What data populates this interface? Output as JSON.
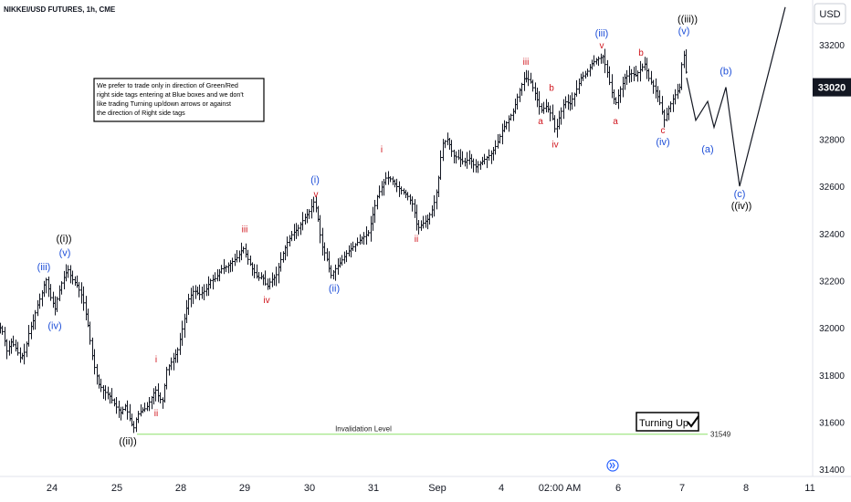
{
  "header": {
    "symbol_title": "NIKKEI/USD FUTURES, 1h, CME",
    "currency_button": "USD"
  },
  "notice": {
    "lines": [
      "We prefer to trade only in direction of Green/Red",
      "right side tags entering at Blue boxes and we don't",
      "like trading Turning up/down arrows or against",
      "the direction of Right side tags"
    ]
  },
  "badge": {
    "label": "Turning Up",
    "icon": "checkmark-icon"
  },
  "scroll_icon": "chevrons-right-icon",
  "colors": {
    "price_bars": "#131722",
    "blue_labels": "#1e4fd8",
    "red_labels": "#d0161e",
    "black_labels": "#000000",
    "invalidation_line": "#8ee06a",
    "projection": "#131722",
    "price_tag_bg": "#131722"
  },
  "chart_data": {
    "type": "ohlc",
    "y_axis": {
      "ticks": [
        31400,
        31600,
        31800,
        32000,
        32200,
        32400,
        32600,
        32800,
        33000,
        33200
      ],
      "tick_labels": [
        "31400",
        "31600",
        "31800",
        "32000",
        "32200",
        "32400",
        "32600",
        "32800",
        "33000",
        "33200"
      ],
      "range": [
        31370,
        33390
      ]
    },
    "x_axis": {
      "labels": [
        "24",
        "25",
        "28",
        "29",
        "30",
        "31",
        "Sep",
        "4",
        "02:00 AM",
        "6",
        "7",
        "8",
        "11"
      ]
    },
    "current_price": {
      "label": "33020",
      "value": 33020
    },
    "invalidation": {
      "label": "Invalidation Level",
      "value": 31549,
      "value_label": "31549"
    },
    "price_path": [
      {
        "t": 0,
        "p": 32000
      },
      {
        "t": 3,
        "p": 31980
      },
      {
        "t": 7,
        "p": 31900
      },
      {
        "t": 12,
        "p": 31940
      },
      {
        "t": 16,
        "p": 31920
      },
      {
        "t": 22,
        "p": 31870
      },
      {
        "t": 27,
        "p": 31900
      },
      {
        "t": 32,
        "p": 31990
      },
      {
        "t": 36,
        "p": 32030
      },
      {
        "t": 41,
        "p": 32100
      },
      {
        "t": 45,
        "p": 32140
      },
      {
        "t": 50,
        "p": 32210
      },
      {
        "t": 55,
        "p": 32130
      },
      {
        "t": 60,
        "p": 32080
      },
      {
        "t": 64,
        "p": 32150
      },
      {
        "t": 68,
        "p": 32200
      },
      {
        "t": 74,
        "p": 32250
      },
      {
        "t": 78,
        "p": 32210
      },
      {
        "t": 84,
        "p": 32180
      },
      {
        "t": 90,
        "p": 32130
      },
      {
        "t": 96,
        "p": 32010
      },
      {
        "t": 102,
        "p": 31850
      },
      {
        "t": 108,
        "p": 31760
      },
      {
        "t": 114,
        "p": 31730
      },
      {
        "t": 120,
        "p": 31710
      },
      {
        "t": 126,
        "p": 31670
      },
      {
        "t": 132,
        "p": 31640
      },
      {
        "t": 137,
        "p": 31670
      },
      {
        "t": 142,
        "p": 31610
      },
      {
        "t": 146,
        "p": 31570
      },
      {
        "t": 150,
        "p": 31630
      },
      {
        "t": 155,
        "p": 31650
      },
      {
        "t": 160,
        "p": 31660
      },
      {
        "t": 165,
        "p": 31700
      },
      {
        "t": 170,
        "p": 31740
      },
      {
        "t": 174,
        "p": 31700
      },
      {
        "t": 178,
        "p": 31690
      },
      {
        "t": 182,
        "p": 31820
      },
      {
        "t": 188,
        "p": 31860
      },
      {
        "t": 194,
        "p": 31900
      },
      {
        "t": 200,
        "p": 32010
      },
      {
        "t": 206,
        "p": 32120
      },
      {
        "t": 212,
        "p": 32160
      },
      {
        "t": 218,
        "p": 32140
      },
      {
        "t": 225,
        "p": 32160
      },
      {
        "t": 230,
        "p": 32200
      },
      {
        "t": 236,
        "p": 32210
      },
      {
        "t": 242,
        "p": 32250
      },
      {
        "t": 248,
        "p": 32260
      },
      {
        "t": 254,
        "p": 32280
      },
      {
        "t": 260,
        "p": 32300
      },
      {
        "t": 266,
        "p": 32340
      },
      {
        "t": 270,
        "p": 32300
      },
      {
        "t": 276,
        "p": 32250
      },
      {
        "t": 282,
        "p": 32210
      },
      {
        "t": 287,
        "p": 32220
      },
      {
        "t": 292,
        "p": 32170
      },
      {
        "t": 296,
        "p": 32200
      },
      {
        "t": 302,
        "p": 32220
      },
      {
        "t": 308,
        "p": 32300
      },
      {
        "t": 314,
        "p": 32360
      },
      {
        "t": 320,
        "p": 32400
      },
      {
        "t": 326,
        "p": 32420
      },
      {
        "t": 332,
        "p": 32460
      },
      {
        "t": 338,
        "p": 32490
      },
      {
        "t": 344,
        "p": 32540
      },
      {
        "t": 348,
        "p": 32460
      },
      {
        "t": 352,
        "p": 32350
      },
      {
        "t": 357,
        "p": 32300
      },
      {
        "t": 362,
        "p": 32220
      },
      {
        "t": 367,
        "p": 32250
      },
      {
        "t": 373,
        "p": 32280
      },
      {
        "t": 380,
        "p": 32320
      },
      {
        "t": 388,
        "p": 32350
      },
      {
        "t": 396,
        "p": 32380
      },
      {
        "t": 403,
        "p": 32400
      },
      {
        "t": 408,
        "p": 32480
      },
      {
        "t": 413,
        "p": 32560
      },
      {
        "t": 418,
        "p": 32600
      },
      {
        "t": 423,
        "p": 32640
      },
      {
        "t": 428,
        "p": 32630
      },
      {
        "t": 434,
        "p": 32600
      },
      {
        "t": 440,
        "p": 32580
      },
      {
        "t": 446,
        "p": 32560
      },
      {
        "t": 452,
        "p": 32520
      },
      {
        "t": 457,
        "p": 32420
      },
      {
        "t": 462,
        "p": 32440
      },
      {
        "t": 468,
        "p": 32460
      },
      {
        "t": 474,
        "p": 32510
      },
      {
        "t": 479,
        "p": 32600
      },
      {
        "t": 484,
        "p": 32780
      },
      {
        "t": 490,
        "p": 32800
      },
      {
        "t": 496,
        "p": 32730
      },
      {
        "t": 502,
        "p": 32720
      },
      {
        "t": 508,
        "p": 32700
      },
      {
        "t": 514,
        "p": 32720
      },
      {
        "t": 520,
        "p": 32680
      },
      {
        "t": 526,
        "p": 32700
      },
      {
        "t": 532,
        "p": 32720
      },
      {
        "t": 538,
        "p": 32740
      },
      {
        "t": 544,
        "p": 32780
      },
      {
        "t": 550,
        "p": 32840
      },
      {
        "t": 556,
        "p": 32880
      },
      {
        "t": 562,
        "p": 32920
      },
      {
        "t": 568,
        "p": 33000
      },
      {
        "t": 574,
        "p": 33060
      },
      {
        "t": 580,
        "p": 33050
      },
      {
        "t": 586,
        "p": 32990
      },
      {
        "t": 592,
        "p": 32920
      },
      {
        "t": 598,
        "p": 32940
      },
      {
        "t": 604,
        "p": 32900
      },
      {
        "t": 608,
        "p": 32830
      },
      {
        "t": 612,
        "p": 32890
      },
      {
        "t": 618,
        "p": 32960
      },
      {
        "t": 624,
        "p": 32950
      },
      {
        "t": 630,
        "p": 33000
      },
      {
        "t": 636,
        "p": 33060
      },
      {
        "t": 642,
        "p": 33080
      },
      {
        "t": 648,
        "p": 33120
      },
      {
        "t": 654,
        "p": 33140
      },
      {
        "t": 660,
        "p": 33150
      },
      {
        "t": 665,
        "p": 33080
      },
      {
        "t": 670,
        "p": 32990
      },
      {
        "t": 674,
        "p": 32950
      },
      {
        "t": 678,
        "p": 33000
      },
      {
        "t": 684,
        "p": 33060
      },
      {
        "t": 690,
        "p": 33080
      },
      {
        "t": 696,
        "p": 33070
      },
      {
        "t": 702,
        "p": 33100
      },
      {
        "t": 706,
        "p": 33120
      },
      {
        "t": 710,
        "p": 33060
      },
      {
        "t": 716,
        "p": 33020
      },
      {
        "t": 722,
        "p": 32960
      },
      {
        "t": 727,
        "p": 32880
      },
      {
        "t": 732,
        "p": 32930
      },
      {
        "t": 738,
        "p": 32980
      },
      {
        "t": 744,
        "p": 33020
      },
      {
        "t": 748,
        "p": 33180
      },
      {
        "t": 752,
        "p": 33060
      }
    ],
    "projection_path": [
      {
        "t": 752,
        "p": 33060
      },
      {
        "t": 762,
        "p": 32880
      },
      {
        "t": 775,
        "p": 32960
      },
      {
        "t": 782,
        "p": 32850
      },
      {
        "t": 795,
        "p": 33020
      },
      {
        "t": 810,
        "p": 32600
      },
      {
        "t": 860,
        "p": 33360
      }
    ],
    "wave_labels": [
      {
        "text": "((i))",
        "color": "black",
        "t": 70,
        "p": 32380
      },
      {
        "text": "(v)",
        "color": "blue",
        "t": 71,
        "p": 32320
      },
      {
        "text": "(iii)",
        "color": "blue",
        "t": 48,
        "p": 32260
      },
      {
        "text": "(iv)",
        "color": "blue",
        "t": 60,
        "p": 32010
      },
      {
        "text": "((ii))",
        "color": "black",
        "t": 140,
        "p": 31520
      },
      {
        "text": "i",
        "color": "red",
        "t": 171,
        "p": 31870
      },
      {
        "text": "ii",
        "color": "red",
        "t": 171,
        "p": 31640
      },
      {
        "text": "iii",
        "color": "red",
        "t": 268,
        "p": 32420
      },
      {
        "text": "iv",
        "color": "red",
        "t": 292,
        "p": 32120
      },
      {
        "text": "v",
        "color": "red",
        "t": 346,
        "p": 32570
      },
      {
        "text": "(i)",
        "color": "blue",
        "t": 345,
        "p": 32630
      },
      {
        "text": "(ii)",
        "color": "blue",
        "t": 366,
        "p": 32170
      },
      {
        "text": "i",
        "color": "red",
        "t": 418,
        "p": 32760
      },
      {
        "text": "ii",
        "color": "red",
        "t": 456,
        "p": 32380
      },
      {
        "text": "iii",
        "color": "red",
        "t": 576,
        "p": 33130
      },
      {
        "text": "iv",
        "color": "red",
        "t": 608,
        "p": 32780
      },
      {
        "text": "a",
        "color": "red",
        "t": 592,
        "p": 32880
      },
      {
        "text": "b",
        "color": "red",
        "t": 604,
        "p": 33020
      },
      {
        "text": "(iii)",
        "color": "blue",
        "t": 659,
        "p": 33250
      },
      {
        "text": "v",
        "color": "red",
        "t": 659,
        "p": 33200
      },
      {
        "text": "a",
        "color": "red",
        "t": 674,
        "p": 32880
      },
      {
        "text": "b",
        "color": "red",
        "t": 702,
        "p": 33170
      },
      {
        "text": "c",
        "color": "red",
        "t": 726,
        "p": 32840
      },
      {
        "text": "(iv)",
        "color": "blue",
        "t": 726,
        "p": 32790
      },
      {
        "text": "((iii))",
        "color": "black",
        "t": 753,
        "p": 33310
      },
      {
        "text": "(v)",
        "color": "blue",
        "t": 749,
        "p": 33260
      },
      {
        "text": "(a)",
        "color": "blue",
        "t": 775,
        "p": 32760
      },
      {
        "text": "(b)",
        "color": "blue",
        "t": 795,
        "p": 33090
      },
      {
        "text": "(c)",
        "color": "blue",
        "t": 810,
        "p": 32570
      },
      {
        "text": "((iv))",
        "color": "black",
        "t": 812,
        "p": 32520
      }
    ]
  }
}
